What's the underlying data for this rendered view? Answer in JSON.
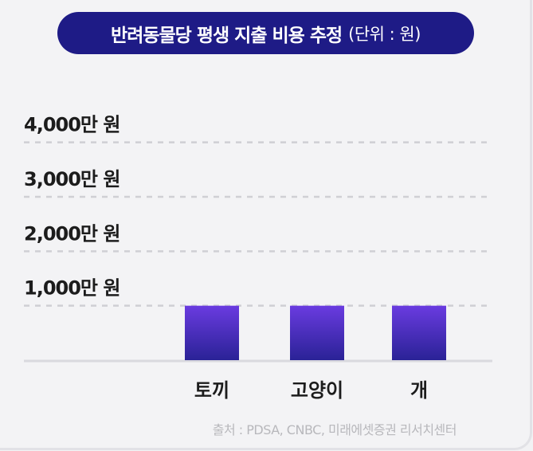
{
  "header": {
    "title": "반려동물당 평생 지출 비용 추정",
    "unit": "(단위 : 원)"
  },
  "source": "출처 : PDSA, CNBC, 미래에셋증권 리서치센터",
  "colors": {
    "title_bg": "#1e1b86",
    "bar_top": "#6a3be0",
    "bar_bottom": "#2a2296",
    "gridline": "#cfcfd4",
    "baseline": "#d9d9de"
  },
  "chart_data": {
    "type": "bar",
    "title": "반려동물당 평생 지출 비용 추정",
    "unit": "(단위 : 원)",
    "categories": [
      "토끼",
      "고양이",
      "개"
    ],
    "values": [
      1000,
      1000,
      1000
    ],
    "ylim": [
      0,
      4000
    ],
    "yticks": [
      1000,
      2000,
      3000,
      4000
    ],
    "ytick_labels": [
      "1,000만 원",
      "2,000만 원",
      "3,000만 원",
      "4,000만 원"
    ],
    "grid": true,
    "legend": "none"
  }
}
